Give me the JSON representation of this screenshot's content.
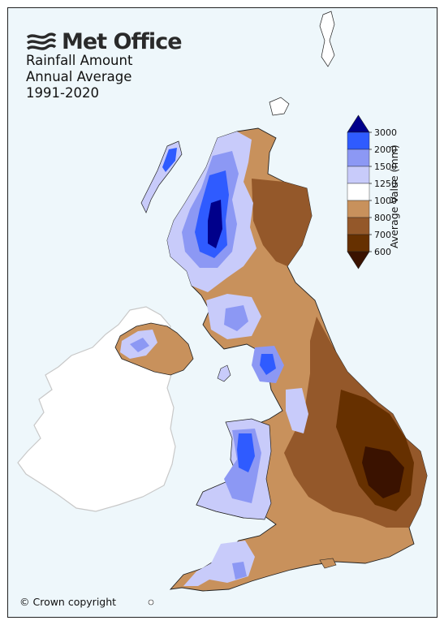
{
  "brand": {
    "name": "Met Office",
    "logo_icon": "met-office-wave-logo"
  },
  "title": {
    "line1": "Rainfall Amount",
    "line2": "Annual Average",
    "line3": "1991-2020"
  },
  "legend": {
    "title": "Average Value (mm)",
    "ticks": [
      "3000",
      "2000",
      "1500",
      "1250",
      "1000",
      "800",
      "700",
      "600"
    ],
    "bands": [
      {
        "range": ">3000",
        "color": "#00008b"
      },
      {
        "range": "2000-3000",
        "color": "#2f5bff"
      },
      {
        "range": "1500-2000",
        "color": "#8c98f4"
      },
      {
        "range": "1250-1500",
        "color": "#c8cbfa"
      },
      {
        "range": "1000-1250",
        "color": "#ffffff"
      },
      {
        "range": "800-1000",
        "color": "#c8915c"
      },
      {
        "range": "700-800",
        "color": "#94582a"
      },
      {
        "range": "600-700",
        "color": "#663000"
      },
      {
        "range": "<600",
        "color": "#3a1200"
      }
    ]
  },
  "copyright": "© Crown copyright",
  "colors": {
    "sea": "#eef7fb",
    "ireland_land": "#ffffff",
    "ireland_outline": "#c8c8c8",
    "border": "#222222"
  }
}
